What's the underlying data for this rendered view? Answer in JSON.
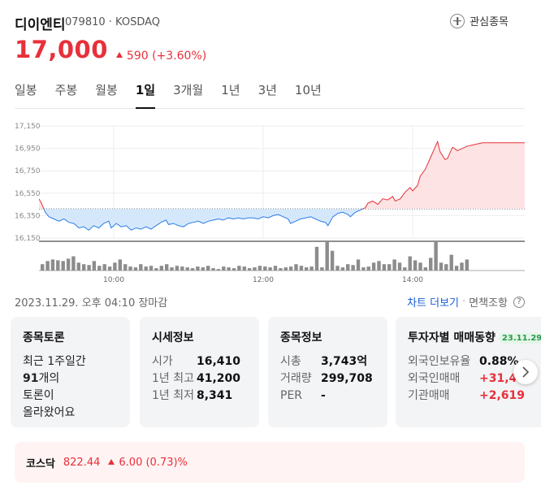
{
  "stock": {
    "name": "디이엔티",
    "code_market": "079810 · KOSDAQ",
    "watch_label": "관심종목",
    "price": "17,000",
    "change": "590 (+3.60%)"
  },
  "tabs": [
    {
      "label": "일봉",
      "active": false
    },
    {
      "label": "주봉",
      "active": false
    },
    {
      "label": "월봉",
      "active": false
    },
    {
      "label": "1일",
      "active": true
    },
    {
      "label": "3개월",
      "active": false
    },
    {
      "label": "1년",
      "active": false
    },
    {
      "label": "3년",
      "active": false
    },
    {
      "label": "10년",
      "active": false
    }
  ],
  "chart_data": {
    "type": "area",
    "yticks": [
      "17,150",
      "16,950",
      "16,750",
      "16,550",
      "16,350",
      "16,150"
    ],
    "ylim": [
      16150,
      17150
    ],
    "base_price": 16410,
    "xticks": [
      "10:00",
      "12:00",
      "14:00"
    ],
    "xlim": [
      0,
      390
    ],
    "series_price": [
      [
        0,
        16500
      ],
      [
        2,
        16460
      ],
      [
        5,
        16380
      ],
      [
        8,
        16340
      ],
      [
        12,
        16320
      ],
      [
        16,
        16300
      ],
      [
        20,
        16320
      ],
      [
        24,
        16290
      ],
      [
        28,
        16280
      ],
      [
        32,
        16240
      ],
      [
        36,
        16250
      ],
      [
        40,
        16220
      ],
      [
        44,
        16260
      ],
      [
        48,
        16240
      ],
      [
        52,
        16280
      ],
      [
        56,
        16300
      ],
      [
        58,
        16240
      ],
      [
        62,
        16280
      ],
      [
        66,
        16250
      ],
      [
        70,
        16260
      ],
      [
        74,
        16220
      ],
      [
        78,
        16240
      ],
      [
        82,
        16230
      ],
      [
        86,
        16250
      ],
      [
        90,
        16230
      ],
      [
        94,
        16260
      ],
      [
        98,
        16290
      ],
      [
        102,
        16310
      ],
      [
        104,
        16270
      ],
      [
        108,
        16280
      ],
      [
        112,
        16260
      ],
      [
        116,
        16250
      ],
      [
        120,
        16280
      ],
      [
        124,
        16290
      ],
      [
        128,
        16300
      ],
      [
        132,
        16280
      ],
      [
        136,
        16300
      ],
      [
        140,
        16310
      ],
      [
        144,
        16320
      ],
      [
        148,
        16310
      ],
      [
        152,
        16330
      ],
      [
        156,
        16320
      ],
      [
        160,
        16330
      ],
      [
        164,
        16320
      ],
      [
        168,
        16330
      ],
      [
        172,
        16330
      ],
      [
        176,
        16320
      ],
      [
        180,
        16340
      ],
      [
        184,
        16330
      ],
      [
        188,
        16350
      ],
      [
        192,
        16360
      ],
      [
        196,
        16340
      ],
      [
        200,
        16320
      ],
      [
        202,
        16280
      ],
      [
        206,
        16300
      ],
      [
        210,
        16320
      ],
      [
        214,
        16330
      ],
      [
        218,
        16340
      ],
      [
        222,
        16320
      ],
      [
        226,
        16300
      ],
      [
        230,
        16290
      ],
      [
        232,
        16260
      ],
      [
        236,
        16340
      ],
      [
        240,
        16370
      ],
      [
        244,
        16380
      ],
      [
        248,
        16360
      ],
      [
        250,
        16340
      ],
      [
        254,
        16380
      ],
      [
        258,
        16400
      ],
      [
        262,
        16420
      ],
      [
        264,
        16460
      ],
      [
        268,
        16480
      ],
      [
        272,
        16450
      ],
      [
        276,
        16500
      ],
      [
        280,
        16490
      ],
      [
        284,
        16520
      ],
      [
        286,
        16480
      ],
      [
        290,
        16500
      ],
      [
        294,
        16560
      ],
      [
        298,
        16600
      ],
      [
        300,
        16570
      ],
      [
        304,
        16620
      ],
      [
        306,
        16700
      ],
      [
        310,
        16760
      ],
      [
        314,
        16860
      ],
      [
        318,
        16960
      ],
      [
        320,
        17010
      ],
      [
        322,
        16920
      ],
      [
        326,
        16850
      ],
      [
        328,
        16860
      ],
      [
        332,
        16960
      ],
      [
        336,
        16930
      ],
      [
        340,
        16950
      ],
      [
        344,
        16970
      ],
      [
        348,
        16980
      ],
      [
        352,
        16990
      ],
      [
        356,
        17000
      ],
      [
        360,
        17000
      ],
      [
        370,
        17000
      ],
      [
        380,
        17000
      ],
      [
        390,
        17000
      ]
    ],
    "series_volume": [
      8,
      12,
      14,
      13,
      12,
      15,
      18,
      10,
      8,
      7,
      12,
      6,
      8,
      5,
      10,
      14,
      8,
      5,
      4,
      8,
      5,
      6,
      3,
      6,
      8,
      4,
      6,
      5,
      4,
      3,
      5,
      4,
      6,
      3,
      2,
      5,
      4,
      3,
      6,
      5,
      3,
      4,
      6,
      5,
      4,
      6,
      3,
      4,
      5,
      8,
      6,
      4,
      5,
      30,
      4,
      36,
      25,
      6,
      4,
      8,
      7,
      14,
      4,
      5,
      10,
      12,
      8,
      8,
      14,
      10,
      4,
      18,
      13,
      10,
      4,
      16,
      36,
      10,
      8,
      20,
      6,
      10,
      14
    ]
  },
  "status": {
    "datetime": "2023.11.29. 오후 04:10 장마감",
    "chart_more": "차트 더보기",
    "disclaimer": "면책조항",
    "help": "?"
  },
  "cards": {
    "discussion": {
      "title": "종목토론",
      "line1": "최근 1주일간",
      "count": "91",
      "line2": "개의",
      "line3": "토론이",
      "line4": "올라왔어요"
    },
    "quote": {
      "title": "시세정보",
      "rows": [
        {
          "k": "시가",
          "v": "16,410"
        },
        {
          "k": "1년 최고",
          "v": "41,200"
        },
        {
          "k": "1년 최저",
          "v": "8,341"
        }
      ]
    },
    "info": {
      "title": "종목정보",
      "rows": [
        {
          "k": "시총",
          "v": "3,743억"
        },
        {
          "k": "거래량",
          "v": "299,708"
        },
        {
          "k": "PER",
          "v": "-"
        }
      ]
    },
    "investor": {
      "title": "투자자별 매매동향",
      "badge": "23.11.29.",
      "rows": [
        {
          "k": "외국인보유율",
          "v": "0.88%"
        },
        {
          "k": "외국인매매",
          "v": "+31,4"
        },
        {
          "k": "기관매매",
          "v": "+2,619"
        }
      ]
    }
  },
  "index": {
    "name": "코스닥",
    "value": "822.44",
    "change": "6.00 (0.73)%"
  },
  "colors": {
    "up": "#e8303a",
    "down": "#2b7de9",
    "up_fill": "#fde3e3",
    "down_fill": "#d5e8fb"
  }
}
